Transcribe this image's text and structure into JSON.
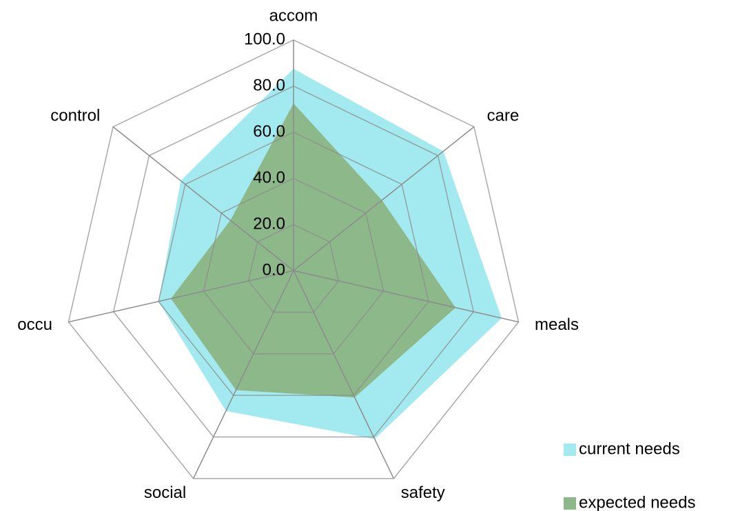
{
  "chart_data": {
    "type": "radar",
    "categories": [
      "accom",
      "care",
      "meals",
      "safety",
      "social",
      "occu",
      "control"
    ],
    "series": [
      {
        "name": "current needs",
        "color": "#a3eaf0",
        "values": [
          87.5,
          83,
          92.5,
          81,
          67.5,
          60,
          62.5
        ]
      },
      {
        "name": "expected needs",
        "color": "#8db88a",
        "values": [
          72.5,
          49,
          72,
          61,
          57.5,
          54.5,
          35
        ]
      }
    ],
    "ylim": [
      0,
      100
    ],
    "yticks": [
      {
        "value": 0,
        "label": "0.0"
      },
      {
        "value": 20,
        "label": "20.0"
      },
      {
        "value": 40,
        "label": "40.0"
      },
      {
        "value": 60,
        "label": "60.0"
      },
      {
        "value": 80,
        "label": "80.0"
      },
      {
        "value": 100,
        "label": "100.0"
      }
    ],
    "grid": true,
    "legend": "bottom-right"
  }
}
